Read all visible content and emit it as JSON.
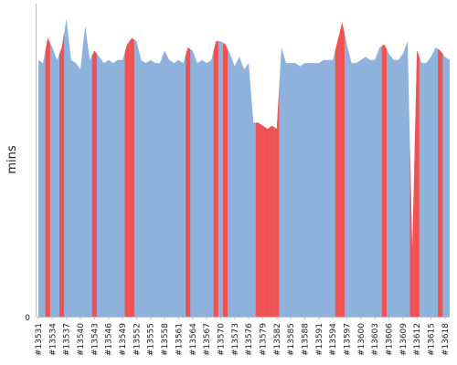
{
  "chart_data": {
    "type": "area",
    "title": "",
    "xlabel": "",
    "ylabel": "mins",
    "ylim": [
      0,
      100
    ],
    "yticks": [
      0
    ],
    "grid": false,
    "legend": "none",
    "colors": {
      "normal": "#8eb2dc",
      "highlight": "#f05252",
      "axis": "#bfbfbf"
    },
    "x": [
      "#13531",
      "#13532",
      "#13533",
      "#13534",
      "#13535",
      "#13536",
      "#13537",
      "#13538",
      "#13539",
      "#13540",
      "#13541",
      "#13542",
      "#13543",
      "#13544",
      "#13545",
      "#13546",
      "#13547",
      "#13548",
      "#13549",
      "#13550",
      "#13551",
      "#13552",
      "#13553",
      "#13554",
      "#13555",
      "#13556",
      "#13557",
      "#13558",
      "#13559",
      "#13560",
      "#13561",
      "#13562",
      "#13563",
      "#13564",
      "#13565",
      "#13566",
      "#13567",
      "#13568",
      "#13569",
      "#13570",
      "#13571",
      "#13572",
      "#13573",
      "#13574",
      "#13575",
      "#13576",
      "#13577",
      "#13578",
      "#13579",
      "#13580",
      "#13581",
      "#13582",
      "#13583",
      "#13584",
      "#13585",
      "#13586",
      "#13587",
      "#13588",
      "#13589",
      "#13590",
      "#13591",
      "#13592",
      "#13593",
      "#13594",
      "#13595",
      "#13596",
      "#13597",
      "#13598",
      "#13599",
      "#13600",
      "#13601",
      "#13602",
      "#13603",
      "#13604",
      "#13605",
      "#13606",
      "#13607",
      "#13608",
      "#13609",
      "#13610",
      "#13611",
      "#13612",
      "#13613",
      "#13614",
      "#13615",
      "#13616",
      "#13617",
      "#13618",
      "#13619"
    ],
    "xtick_labels": [
      "#13531",
      "#13534",
      "#13537",
      "#13540",
      "#13543",
      "#13546",
      "#13549",
      "#13552",
      "#13555",
      "#13558",
      "#13561",
      "#13564",
      "#13567",
      "#13570",
      "#13573",
      "#13576",
      "#13579",
      "#13582",
      "#13585",
      "#13588",
      "#13591",
      "#13594",
      "#13597",
      "#13600",
      "#13603",
      "#13606",
      "#13609",
      "#13612",
      "#13615",
      "#13618"
    ],
    "values": [
      82,
      81,
      89,
      86,
      82,
      86,
      95,
      82,
      81,
      79,
      93,
      82,
      85,
      83,
      81,
      82,
      81,
      82,
      82,
      87,
      89,
      88,
      82,
      81,
      82,
      81,
      81,
      85,
      82,
      81,
      82,
      81,
      86,
      85,
      81,
      82,
      81,
      82,
      88,
      88,
      87,
      84,
      80,
      83,
      79,
      81,
      62,
      62,
      61,
      60,
      61,
      60,
      86,
      81,
      81,
      81,
      80,
      81,
      81,
      81,
      81,
      82,
      82,
      82,
      88,
      94,
      87,
      81,
      81,
      82,
      83,
      82,
      82,
      86,
      87,
      84,
      82,
      82,
      84,
      88,
      21,
      85,
      81,
      81,
      83,
      86,
      85,
      83,
      82
    ],
    "highlight": [
      false,
      false,
      true,
      false,
      false,
      true,
      false,
      false,
      false,
      false,
      false,
      false,
      true,
      false,
      false,
      false,
      false,
      false,
      false,
      true,
      true,
      false,
      false,
      false,
      false,
      false,
      false,
      false,
      false,
      false,
      false,
      false,
      true,
      false,
      false,
      false,
      false,
      false,
      true,
      false,
      true,
      false,
      false,
      false,
      false,
      false,
      false,
      true,
      true,
      true,
      true,
      true,
      false,
      false,
      false,
      false,
      false,
      false,
      false,
      false,
      false,
      false,
      false,
      false,
      true,
      true,
      false,
      false,
      false,
      false,
      false,
      false,
      false,
      false,
      true,
      false,
      false,
      false,
      false,
      false,
      true,
      true,
      false,
      false,
      false,
      false,
      true,
      false,
      false
    ]
  }
}
